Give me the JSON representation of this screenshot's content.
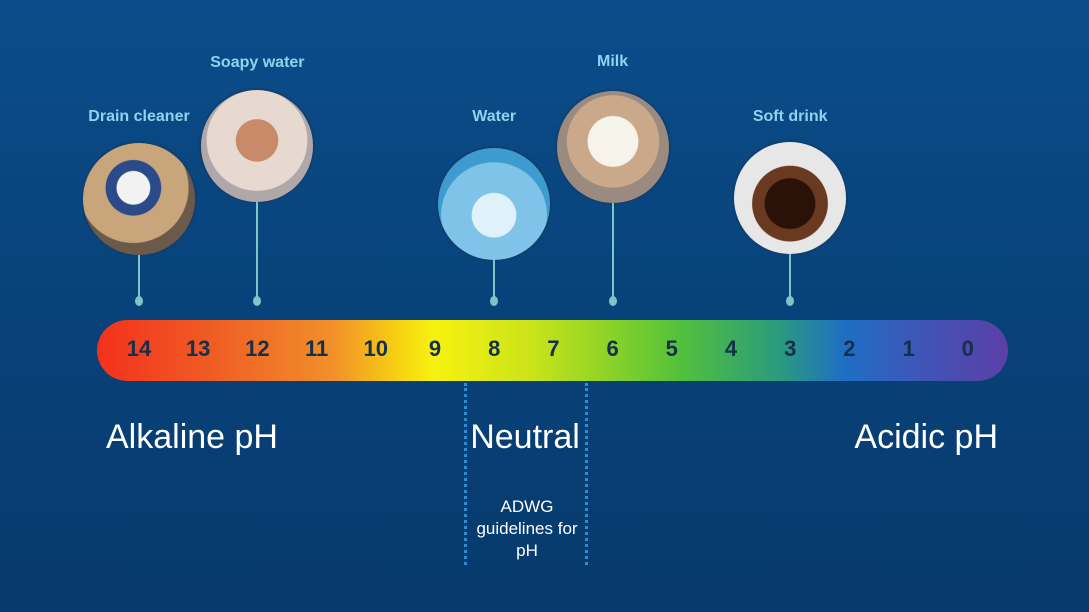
{
  "items": [
    {
      "label": "Drain cleaner",
      "ph": 14,
      "icon": "drain-cleaner-photo"
    },
    {
      "label": "Soapy water",
      "ph": 12,
      "icon": "soapy-water-photo"
    },
    {
      "label": "Water",
      "ph": 8,
      "icon": "water-glass-photo"
    },
    {
      "label": "Milk",
      "ph": 6,
      "icon": "milk-glass-photo"
    },
    {
      "label": "Soft drink",
      "ph": 3,
      "icon": "soft-drink-photo"
    }
  ],
  "scale": [
    "14",
    "13",
    "12",
    "11",
    "10",
    "9",
    "8",
    "7",
    "6",
    "5",
    "4",
    "3",
    "2",
    "1",
    "0"
  ],
  "labels": {
    "alkaline": "Alkaline pH",
    "neutral": "Neutral",
    "acidic": "Acidic pH",
    "adwg": "ADWG guidelines for pH"
  },
  "adwg_range": [
    6.5,
    8.5
  ]
}
